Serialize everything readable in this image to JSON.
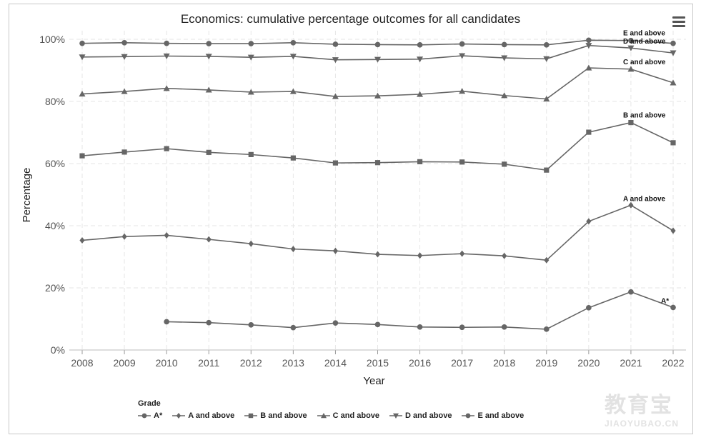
{
  "chart_data": {
    "type": "line",
    "title": "Economics: cumulative percentage outcomes for all candidates",
    "xlabel": "Year",
    "ylabel": "Percentage",
    "ylim": [
      0,
      100
    ],
    "yticks": [
      "0%",
      "20%",
      "40%",
      "60%",
      "80%",
      "100%"
    ],
    "x": [
      "2008",
      "2009",
      "2010",
      "2011",
      "2012",
      "2013",
      "2014",
      "2015",
      "2016",
      "2017",
      "2018",
      "2019",
      "2020",
      "2021",
      "2022"
    ],
    "grid": true,
    "legend_title": "Grade",
    "legend_position": "bottom",
    "line_color": "#666666",
    "series": [
      {
        "name": "A*",
        "marker": "circle",
        "values": [
          null,
          null,
          9.1,
          8.8,
          8.1,
          7.2,
          8.7,
          8.2,
          7.4,
          7.3,
          7.4,
          6.7,
          13.6,
          18.7,
          13.7
        ]
      },
      {
        "name": "A and above",
        "marker": "diamond",
        "values": [
          35.3,
          36.5,
          36.9,
          35.6,
          34.2,
          32.5,
          31.9,
          30.8,
          30.4,
          31.0,
          30.3,
          28.9,
          41.4,
          46.6,
          38.4
        ]
      },
      {
        "name": "B and above",
        "marker": "square",
        "values": [
          62.5,
          63.7,
          64.8,
          63.6,
          62.9,
          61.8,
          60.2,
          60.3,
          60.6,
          60.5,
          59.8,
          57.9,
          70.1,
          73.2,
          66.7
        ]
      },
      {
        "name": "C and above",
        "marker": "triangle-up",
        "values": [
          82.4,
          83.2,
          84.2,
          83.7,
          83.0,
          83.2,
          81.6,
          81.8,
          82.3,
          83.3,
          81.9,
          80.8,
          90.8,
          90.4,
          86.0
        ]
      },
      {
        "name": "D and above",
        "marker": "triangle-down",
        "values": [
          94.3,
          94.4,
          94.6,
          94.5,
          94.2,
          94.5,
          93.4,
          93.5,
          93.6,
          94.7,
          94.0,
          93.7,
          98.0,
          97.2,
          95.6
        ]
      },
      {
        "name": "E and above",
        "marker": "circle",
        "values": [
          98.7,
          98.9,
          98.7,
          98.6,
          98.6,
          98.9,
          98.4,
          98.3,
          98.2,
          98.5,
          98.3,
          98.2,
          99.7,
          99.6,
          98.7
        ]
      }
    ],
    "end_labels": [
      "A*",
      "A and above",
      "B and above",
      "C and above",
      "D and above",
      "E and above"
    ]
  },
  "watermark": {
    "big": "教育宝",
    "small": "JIAOYUBAO.CN"
  }
}
